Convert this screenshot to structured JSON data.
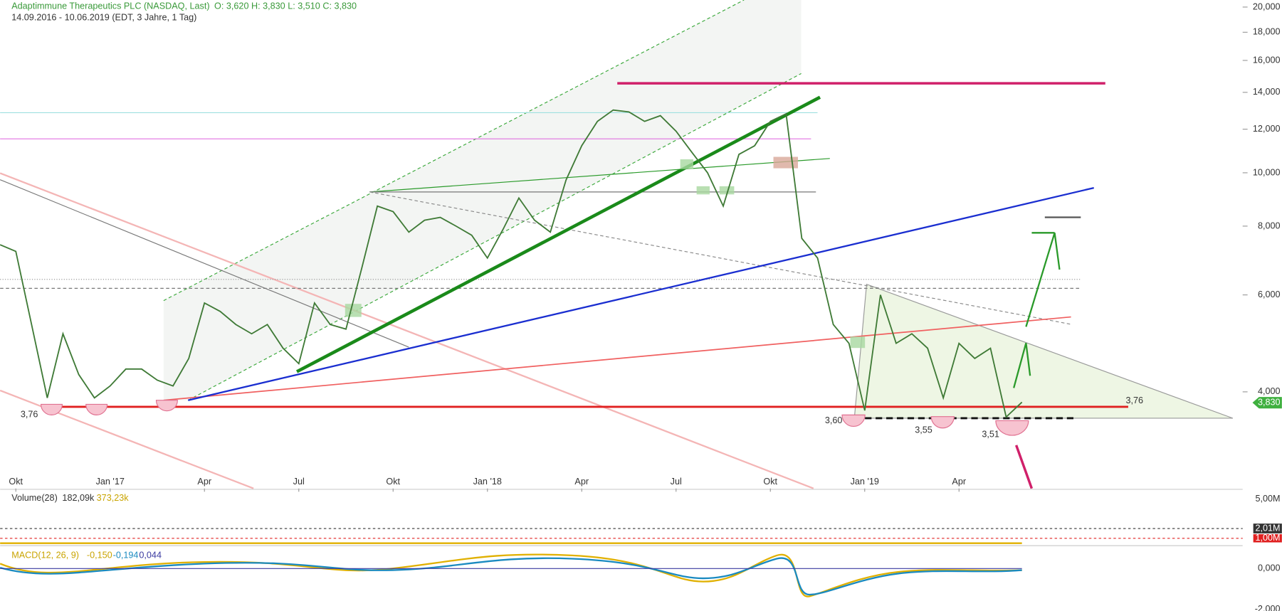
{
  "chart_data": {
    "type": "line",
    "title": "Adaptimmune Therapeutics PLC (NASDAQ, Last)",
    "ohlc": "O: 3,620  H: 3,830  L: 3,510  C: 3,830",
    "subtitle": "14.09.2016 - 10.06.2019 (EDT, 3 Jahre, 1 Tag)",
    "categories": [
      null,
      "Okt",
      null,
      null,
      null,
      null,
      null,
      "Jan '17",
      null,
      null,
      null,
      null,
      null,
      "Apr",
      null,
      null,
      null,
      null,
      null,
      "Jul",
      null,
      null,
      null,
      null,
      null,
      "Okt",
      null,
      null,
      null,
      null,
      null,
      "Jan '18",
      null,
      null,
      null,
      null,
      null,
      "Apr",
      null,
      null,
      null,
      null,
      null,
      "Jul",
      null,
      null,
      null,
      null,
      null,
      "Okt",
      null,
      null,
      null,
      null,
      null,
      "Jan '19",
      null,
      null,
      null,
      null,
      null,
      "Apr",
      null,
      null,
      null,
      null
    ],
    "values": [
      7.4,
      7.2,
      5.3,
      3.9,
      5.1,
      4.3,
      3.9,
      4.1,
      4.4,
      4.4,
      4.2,
      4.1,
      4.6,
      5.8,
      5.6,
      5.3,
      5.1,
      5.3,
      4.8,
      4.5,
      5.8,
      5.3,
      5.2,
      6.7,
      8.7,
      8.5,
      7.8,
      8.2,
      8.3,
      8.0,
      7.7,
      7.0,
      7.9,
      9.0,
      8.2,
      7.8,
      9.7,
      11.2,
      12.4,
      13.0,
      12.9,
      12.4,
      12.7,
      11.9,
      10.9,
      10.0,
      8.7,
      10.8,
      11.2,
      12.4,
      12.8,
      7.6,
      7.0,
      5.3,
      4.9,
      3.7,
      6.0,
      4.9,
      5.1,
      4.8,
      3.9,
      4.9,
      4.6,
      4.8,
      3.6,
      3.83
    ],
    "color": "#3f7a36",
    "log_scale": true,
    "ylim": [
      2.67,
      20.6
    ],
    "yticks": [
      {
        "value": 4,
        "label": "4,000"
      },
      {
        "value": 6,
        "label": "6,000"
      },
      {
        "value": 8,
        "label": "8,000"
      },
      {
        "value": 10,
        "label": "10,000"
      },
      {
        "value": 12,
        "label": "12,000"
      },
      {
        "value": 14,
        "label": "14,000"
      },
      {
        "value": 16,
        "label": "16,000"
      },
      {
        "value": 18,
        "label": "18,000"
      },
      {
        "value": 20,
        "label": "20,000"
      }
    ],
    "last_price_label": "3,830",
    "annotations": [
      "3,76",
      "3,76",
      "3,60",
      "3,55",
      "3,51"
    ],
    "volume_panel": {
      "title": "Volume(28)",
      "values": [
        "182,09k",
        "373,23k"
      ],
      "ticks": [
        "5,00M",
        "2,01M",
        "1,00M"
      ]
    },
    "macd_panel": {
      "title": "MACD(12, 26, 9)",
      "values": [
        "-0,150",
        "-0,194",
        "0,044"
      ],
      "ticks": [
        "0,000",
        "-2,000"
      ]
    }
  }
}
